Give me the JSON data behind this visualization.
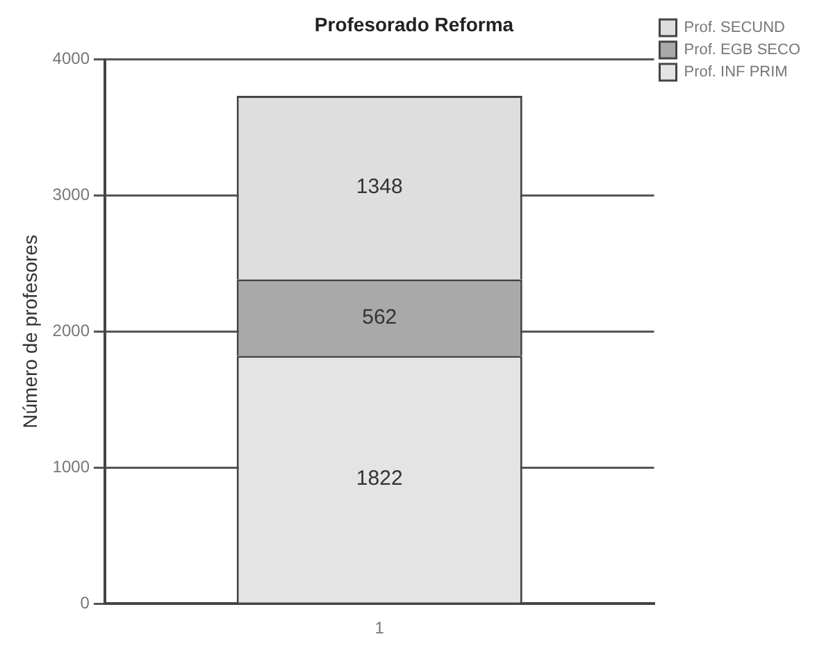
{
  "chart_data": {
    "type": "bar",
    "title": "Profesorado Reforma",
    "ylabel": "Número de profesores",
    "categories": [
      "1"
    ],
    "stacked": true,
    "series": [
      {
        "name": "Prof. INF PRIM",
        "color": "#e4e4e4",
        "values": [
          1822
        ]
      },
      {
        "name": "Prof. EGB SECO",
        "color": "#a9a9a9",
        "values": [
          562
        ]
      },
      {
        "name": "Prof. SECUND",
        "color": "#dedede",
        "values": [
          1348
        ]
      }
    ],
    "ylim": [
      0,
      4000
    ],
    "yticks": [
      0,
      1000,
      2000,
      3000,
      4000
    ],
    "grid": "y",
    "legend": "top right",
    "data_labels": true
  }
}
